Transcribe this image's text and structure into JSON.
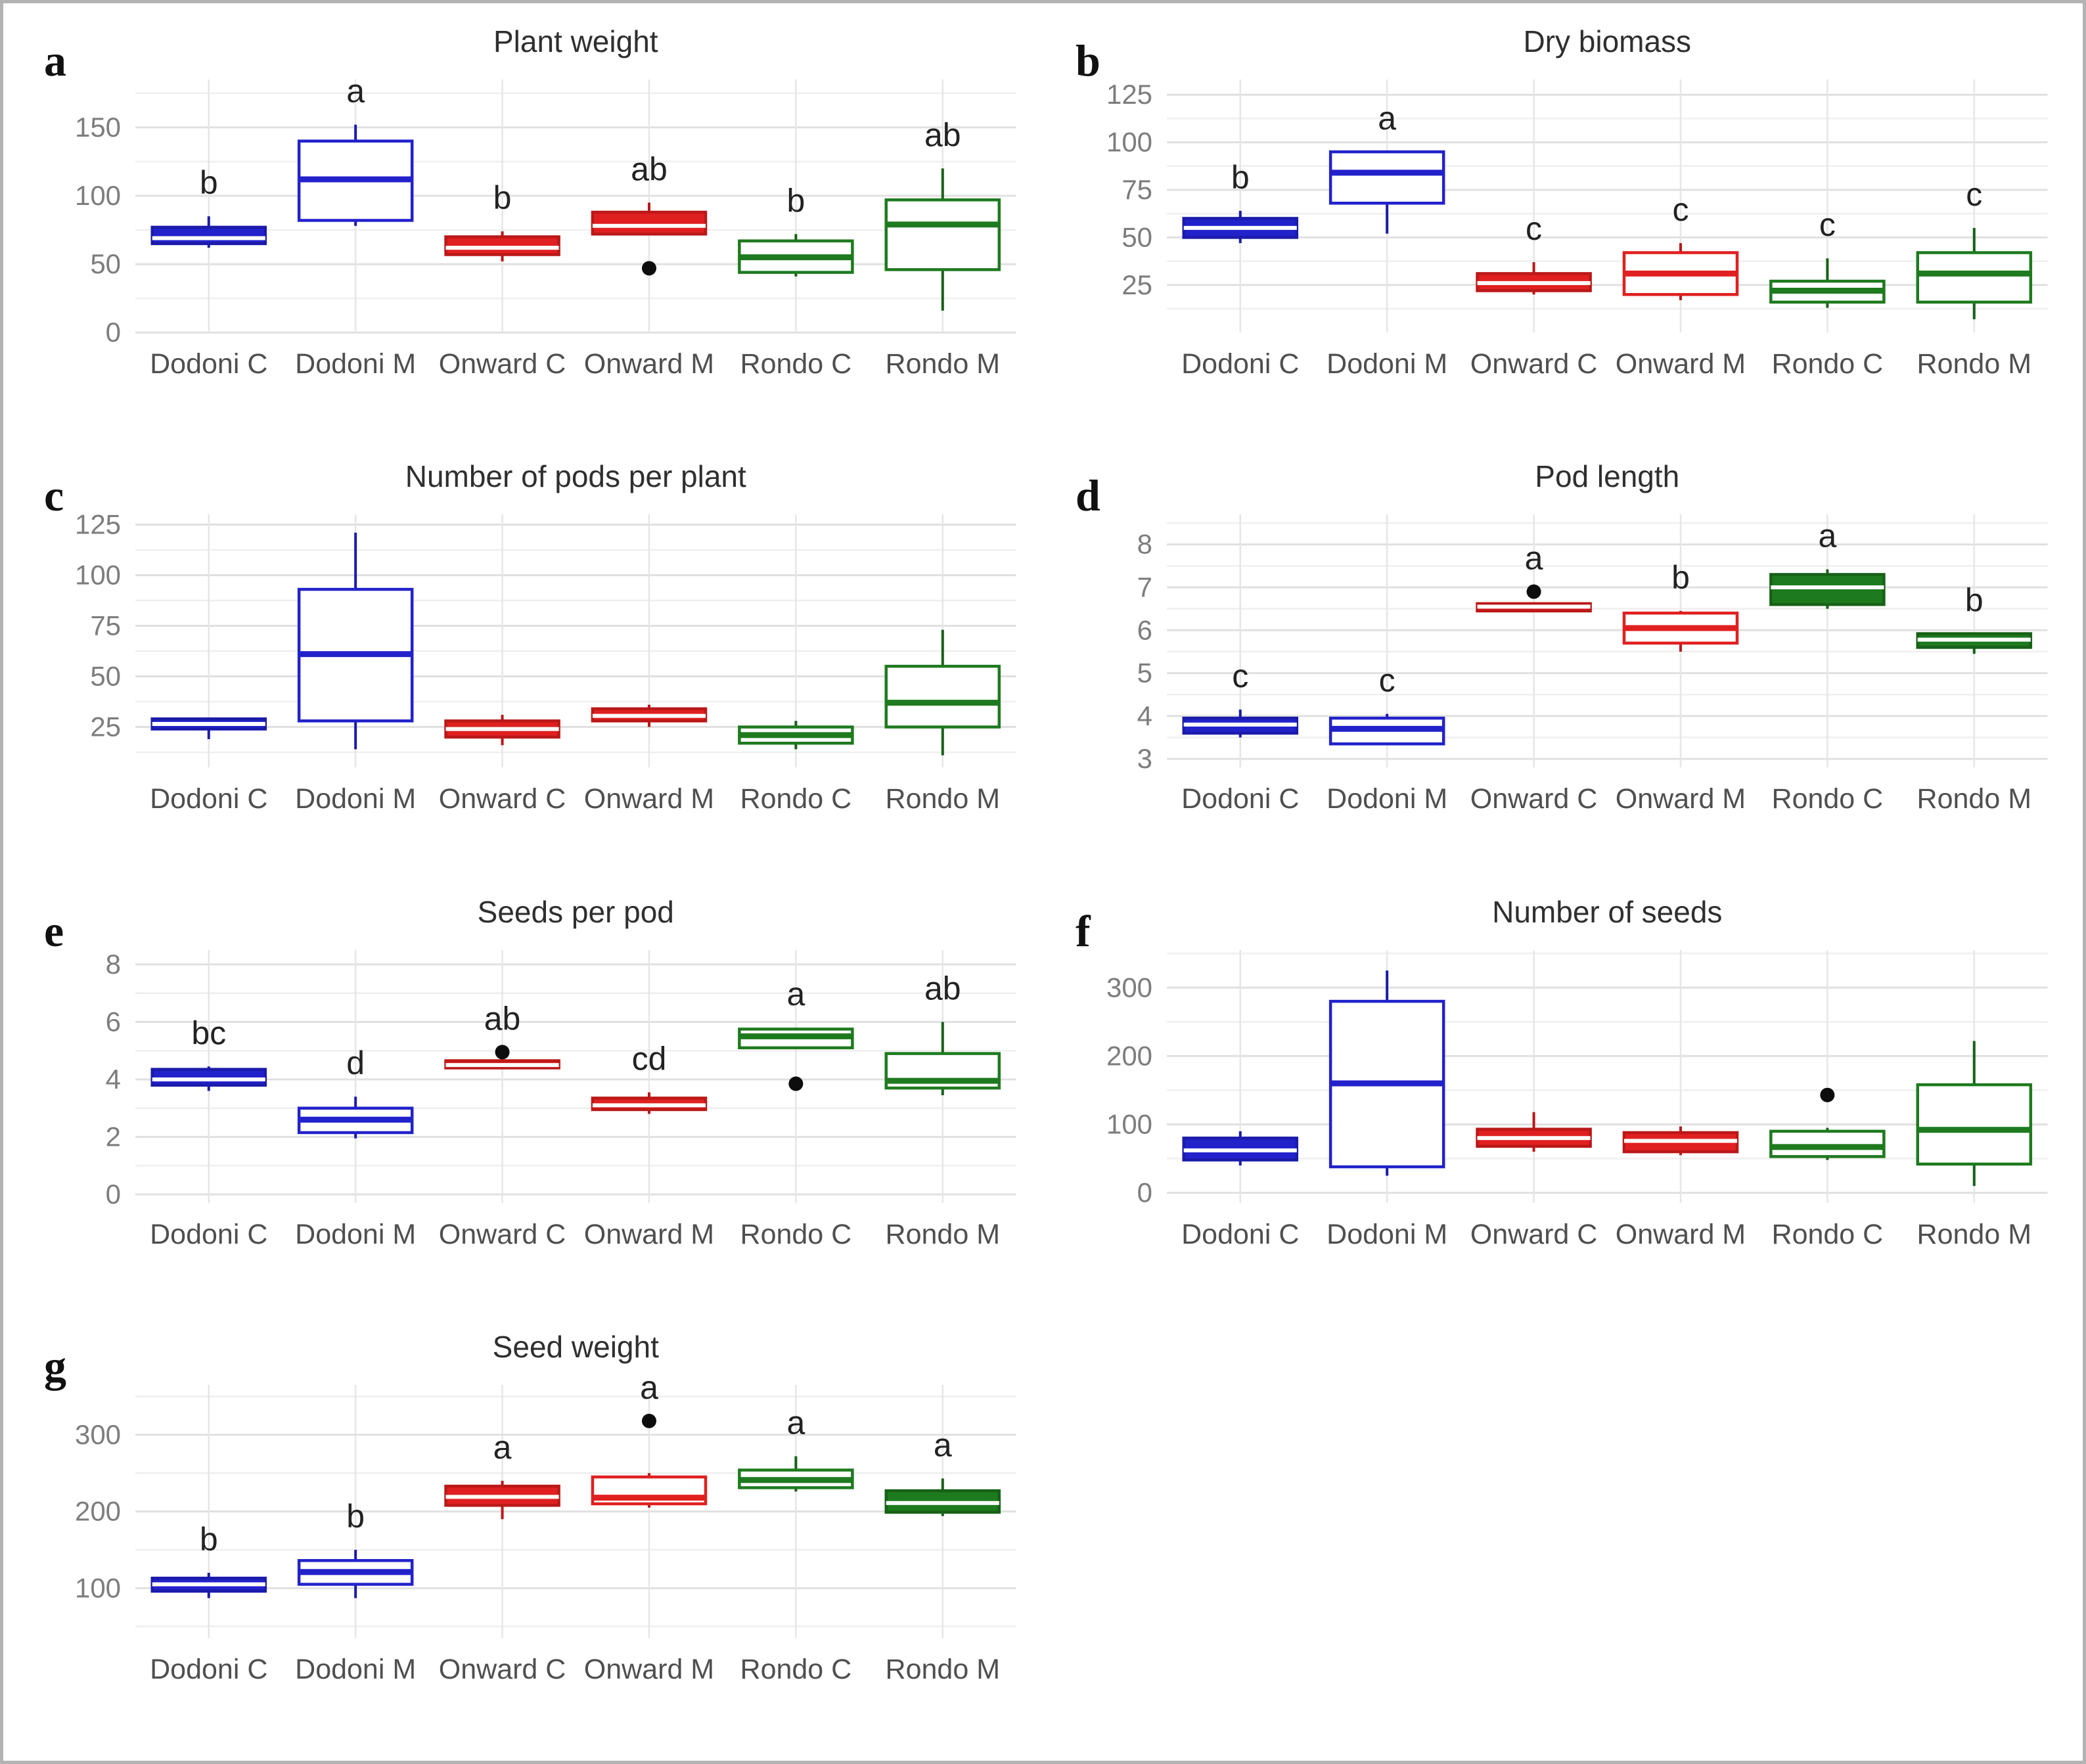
{
  "figure": {
    "background": "#ffffff",
    "border_color": "#b3b3b3"
  },
  "colors": {
    "blue": "#2222cb",
    "blue_stroke": "#1b1baa",
    "red": "#e02020",
    "red_stroke": "#bb1818",
    "green": "#1e7a1e",
    "green_stroke": "#176117",
    "outlier": "#0d0d0d",
    "title": "#2f2f2f",
    "panel_letter": "#111111",
    "sig_letter": "#222222",
    "tick_label": "#7d7d7d",
    "category_label": "#4f4f4f",
    "grid_major": "#e0e0e0",
    "grid_minor": "#efefef",
    "grid_vertical": "#e6e6e6"
  },
  "categories": [
    "Dodoni C",
    "Dodoni M",
    "Onward C",
    "Onward M",
    "Rondo C",
    "Rondo M"
  ],
  "chart_data": [
    {
      "type": "boxplot",
      "panel": "a",
      "title": "Plant weight",
      "ylim": [
        0,
        185
      ],
      "yticks": [
        0,
        50,
        100,
        150
      ],
      "yminor": [
        25,
        75,
        125,
        175
      ],
      "boxes": [
        {
          "category": "Dodoni C",
          "color": "blue",
          "fill": "solid",
          "letter": "b",
          "low": 62,
          "q1": 65,
          "median": 69,
          "q3": 77,
          "high": 85,
          "outliers": []
        },
        {
          "category": "Dodoni M",
          "color": "blue",
          "fill": "open",
          "letter": "a",
          "low": 78,
          "q1": 82,
          "median": 112,
          "q3": 140,
          "high": 152,
          "outliers": []
        },
        {
          "category": "Onward C",
          "color": "red",
          "fill": "solid",
          "letter": "b",
          "low": 52,
          "q1": 57,
          "median": 62,
          "q3": 70,
          "high": 74,
          "outliers": []
        },
        {
          "category": "Onward M",
          "color": "red",
          "fill": "solid",
          "letter": "ab",
          "low": 72,
          "q1": 72,
          "median": 78,
          "q3": 88,
          "high": 95,
          "outliers": [
            47
          ]
        },
        {
          "category": "Rondo C",
          "color": "green",
          "fill": "open",
          "letter": "b",
          "low": 41,
          "q1": 44,
          "median": 55,
          "q3": 67,
          "high": 72,
          "outliers": []
        },
        {
          "category": "Rondo M",
          "color": "green",
          "fill": "open",
          "letter": "ab",
          "low": 16,
          "q1": 46,
          "median": 79,
          "q3": 97,
          "high": 120,
          "outliers": []
        }
      ]
    },
    {
      "type": "boxplot",
      "panel": "b",
      "title": "Dry biomass",
      "ylim": [
        0,
        133
      ],
      "yticks": [
        25,
        50,
        75,
        100,
        125
      ],
      "yminor": [
        12.5,
        37.5,
        62.5,
        87.5,
        112.5
      ],
      "boxes": [
        {
          "category": "Dodoni C",
          "color": "blue",
          "fill": "solid",
          "letter": "b",
          "low": 47,
          "q1": 50,
          "median": 55,
          "q3": 60,
          "high": 64,
          "outliers": []
        },
        {
          "category": "Dodoni M",
          "color": "blue",
          "fill": "open",
          "letter": "a",
          "low": 52,
          "q1": 68,
          "median": 84,
          "q3": 95,
          "high": 95,
          "outliers": []
        },
        {
          "category": "Onward C",
          "color": "red",
          "fill": "solid",
          "letter": "c",
          "low": 20,
          "q1": 22,
          "median": 26,
          "q3": 31,
          "high": 37,
          "outliers": []
        },
        {
          "category": "Onward M",
          "color": "red",
          "fill": "open",
          "letter": "c",
          "low": 17,
          "q1": 20,
          "median": 31,
          "q3": 42,
          "high": 47,
          "outliers": []
        },
        {
          "category": "Rondo C",
          "color": "green",
          "fill": "open",
          "letter": "c",
          "low": 13,
          "q1": 16,
          "median": 22,
          "q3": 27,
          "high": 39,
          "outliers": []
        },
        {
          "category": "Rondo M",
          "color": "green",
          "fill": "open",
          "letter": "c",
          "low": 7,
          "q1": 16,
          "median": 31,
          "q3": 42,
          "high": 55,
          "outliers": []
        }
      ]
    },
    {
      "type": "boxplot",
      "panel": "c",
      "title": "Number of pods per plant",
      "ylim": [
        5,
        130
      ],
      "yticks": [
        25,
        50,
        75,
        100,
        125
      ],
      "yminor": [
        12.5,
        37.5,
        62.5,
        87.5,
        112.5
      ],
      "boxes": [
        {
          "category": "Dodoni C",
          "color": "blue",
          "fill": "solid",
          "letter": "",
          "low": 19,
          "q1": 24,
          "median": 26.5,
          "q3": 29,
          "high": 29,
          "outliers": []
        },
        {
          "category": "Dodoni M",
          "color": "blue",
          "fill": "open",
          "letter": "",
          "low": 14,
          "q1": 28,
          "median": 61,
          "q3": 93,
          "high": 121,
          "outliers": []
        },
        {
          "category": "Onward C",
          "color": "red",
          "fill": "solid",
          "letter": "",
          "low": 16,
          "q1": 20,
          "median": 24,
          "q3": 28,
          "high": 31,
          "outliers": []
        },
        {
          "category": "Onward M",
          "color": "red",
          "fill": "solid",
          "letter": "",
          "low": 25,
          "q1": 28,
          "median": 30.5,
          "q3": 34,
          "high": 36,
          "outliers": []
        },
        {
          "category": "Rondo C",
          "color": "green",
          "fill": "open",
          "letter": "",
          "low": 14,
          "q1": 17,
          "median": 21,
          "q3": 25,
          "high": 28,
          "outliers": []
        },
        {
          "category": "Rondo M",
          "color": "green",
          "fill": "open",
          "letter": "",
          "low": 11,
          "q1": 25,
          "median": 37,
          "q3": 55,
          "high": 73,
          "outliers": []
        }
      ]
    },
    {
      "type": "boxplot",
      "panel": "d",
      "title": "Pod length",
      "ylim": [
        2.8,
        8.7
      ],
      "yticks": [
        3,
        4,
        5,
        6,
        7,
        8
      ],
      "yminor": [
        3.5,
        4.5,
        5.5,
        6.5,
        7.5,
        8.5
      ],
      "boxes": [
        {
          "category": "Dodoni C",
          "color": "blue",
          "fill": "solid",
          "letter": "c",
          "low": 3.5,
          "q1": 3.6,
          "median": 3.8,
          "q3": 3.95,
          "high": 4.15,
          "outliers": []
        },
        {
          "category": "Dodoni M",
          "color": "blue",
          "fill": "open",
          "letter": "c",
          "low": 3.35,
          "q1": 3.35,
          "median": 3.7,
          "q3": 3.95,
          "high": 4.05,
          "outliers": []
        },
        {
          "category": "Onward C",
          "color": "red",
          "fill": "solid",
          "letter": "a",
          "low": 6.45,
          "q1": 6.45,
          "median": 6.55,
          "q3": 6.62,
          "high": 6.62,
          "outliers": [
            6.9
          ]
        },
        {
          "category": "Onward M",
          "color": "red",
          "fill": "open",
          "letter": "b",
          "low": 5.5,
          "q1": 5.7,
          "median": 6.05,
          "q3": 6.4,
          "high": 6.45,
          "outliers": []
        },
        {
          "category": "Rondo C",
          "color": "green",
          "fill": "solid",
          "letter": "a",
          "low": 6.5,
          "q1": 6.6,
          "median": 7.0,
          "q3": 7.3,
          "high": 7.42,
          "outliers": []
        },
        {
          "category": "Rondo M",
          "color": "green",
          "fill": "solid",
          "letter": "b",
          "low": 5.45,
          "q1": 5.6,
          "median": 5.78,
          "q3": 5.92,
          "high": 5.92,
          "outliers": []
        }
      ]
    },
    {
      "type": "boxplot",
      "panel": "e",
      "title": "Seeds per pod",
      "ylim": [
        -0.3,
        8.5
      ],
      "yticks": [
        0,
        2,
        4,
        6,
        8
      ],
      "yminor": [
        1,
        3,
        5,
        7
      ],
      "boxes": [
        {
          "category": "Dodoni C",
          "color": "blue",
          "fill": "solid",
          "letter": "bc",
          "low": 3.6,
          "q1": 3.8,
          "median": 4.0,
          "q3": 4.35,
          "high": 4.45,
          "outliers": []
        },
        {
          "category": "Dodoni M",
          "color": "blue",
          "fill": "open",
          "letter": "d",
          "low": 1.95,
          "q1": 2.15,
          "median": 2.6,
          "q3": 3.0,
          "high": 3.4,
          "outliers": []
        },
        {
          "category": "Onward C",
          "color": "red",
          "fill": "solid",
          "letter": "ab",
          "low": 4.35,
          "q1": 4.4,
          "median": 4.5,
          "q3": 4.65,
          "high": 4.7,
          "outliers": [
            4.95
          ]
        },
        {
          "category": "Onward M",
          "color": "red",
          "fill": "solid",
          "letter": "cd",
          "low": 2.8,
          "q1": 2.95,
          "median": 3.1,
          "q3": 3.35,
          "high": 3.55,
          "outliers": []
        },
        {
          "category": "Rondo C",
          "color": "green",
          "fill": "open",
          "letter": "a",
          "low": 5.05,
          "q1": 5.1,
          "median": 5.5,
          "q3": 5.75,
          "high": 5.8,
          "outliers": [
            3.85
          ]
        },
        {
          "category": "Rondo M",
          "color": "green",
          "fill": "open",
          "letter": "ab",
          "low": 3.45,
          "q1": 3.7,
          "median": 3.95,
          "q3": 4.9,
          "high": 6.0,
          "outliers": []
        }
      ]
    },
    {
      "type": "boxplot",
      "panel": "f",
      "title": "Number of seeds",
      "ylim": [
        -15,
        355
      ],
      "yticks": [
        0,
        100,
        200,
        300
      ],
      "yminor": [
        50,
        150,
        250,
        350
      ],
      "boxes": [
        {
          "category": "Dodoni C",
          "color": "blue",
          "fill": "solid",
          "letter": "",
          "low": 40,
          "q1": 48,
          "median": 62,
          "q3": 80,
          "high": 90,
          "outliers": []
        },
        {
          "category": "Dodoni M",
          "color": "blue",
          "fill": "open",
          "letter": "",
          "low": 25,
          "q1": 38,
          "median": 160,
          "q3": 280,
          "high": 325,
          "outliers": []
        },
        {
          "category": "Onward C",
          "color": "red",
          "fill": "solid",
          "letter": "",
          "low": 60,
          "q1": 68,
          "median": 80,
          "q3": 93,
          "high": 118,
          "outliers": []
        },
        {
          "category": "Onward M",
          "color": "red",
          "fill": "solid",
          "letter": "",
          "low": 55,
          "q1": 60,
          "median": 76,
          "q3": 88,
          "high": 97,
          "outliers": []
        },
        {
          "category": "Rondo C",
          "color": "green",
          "fill": "open",
          "letter": "",
          "low": 48,
          "q1": 53,
          "median": 67,
          "q3": 90,
          "high": 95,
          "outliers": [
            143
          ]
        },
        {
          "category": "Rondo M",
          "color": "green",
          "fill": "open",
          "letter": "",
          "low": 10,
          "q1": 42,
          "median": 92,
          "q3": 158,
          "high": 222,
          "outliers": []
        }
      ]
    },
    {
      "type": "boxplot",
      "panel": "g",
      "title": "Seed weight",
      "ylim": [
        35,
        365
      ],
      "yticks": [
        100,
        200,
        300
      ],
      "yminor": [
        50,
        150,
        250,
        350
      ],
      "boxes": [
        {
          "category": "Dodoni C",
          "color": "blue",
          "fill": "solid",
          "letter": "b",
          "low": 87,
          "q1": 96,
          "median": 105,
          "q3": 113,
          "high": 120,
          "outliers": []
        },
        {
          "category": "Dodoni M",
          "color": "blue",
          "fill": "open",
          "letter": "b",
          "low": 87,
          "q1": 105,
          "median": 121,
          "q3": 136,
          "high": 150,
          "outliers": []
        },
        {
          "category": "Onward C",
          "color": "red",
          "fill": "solid",
          "letter": "a",
          "low": 190,
          "q1": 208,
          "median": 219,
          "q3": 233,
          "high": 240,
          "outliers": []
        },
        {
          "category": "Onward M",
          "color": "red",
          "fill": "open",
          "letter": "a",
          "low": 205,
          "q1": 210,
          "median": 218,
          "q3": 245,
          "high": 250,
          "outliers": [
            318
          ]
        },
        {
          "category": "Rondo C",
          "color": "green",
          "fill": "open",
          "letter": "a",
          "low": 226,
          "q1": 231,
          "median": 241,
          "q3": 254,
          "high": 272,
          "outliers": []
        },
        {
          "category": "Rondo M",
          "color": "green",
          "fill": "solid",
          "letter": "a",
          "low": 194,
          "q1": 199,
          "median": 211,
          "q3": 227,
          "high": 243,
          "outliers": []
        }
      ]
    }
  ]
}
